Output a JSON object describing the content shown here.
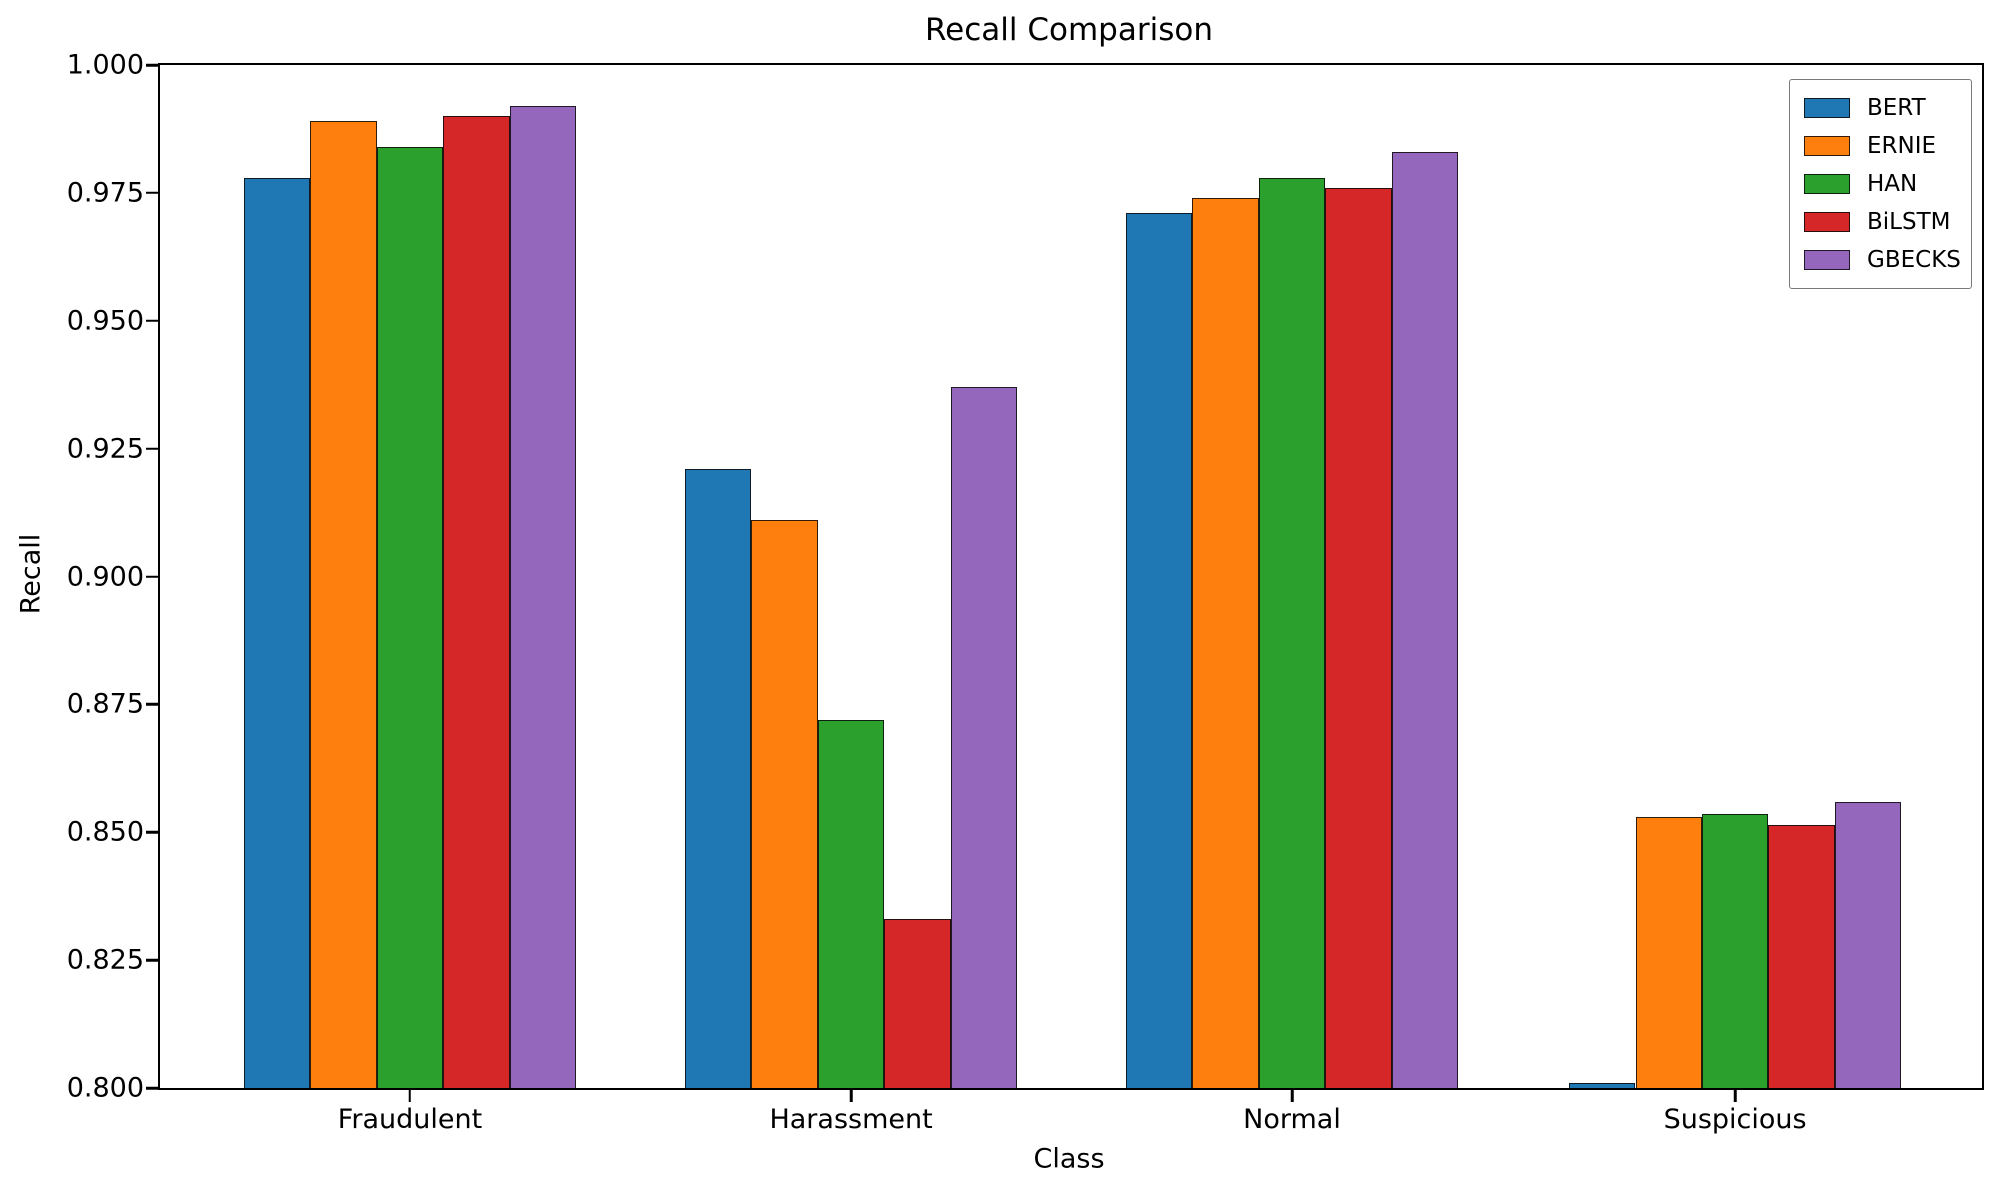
{
  "figure": {
    "title": "Recall Comparison",
    "xlabel": "Class",
    "ylabel": "Recall"
  },
  "chart_data": {
    "type": "bar",
    "title": "Recall Comparison",
    "xlabel": "Class",
    "ylabel": "Recall",
    "categories": [
      "Fraudulent",
      "Harassment",
      "Normal",
      "Suspicious"
    ],
    "series": [
      {
        "name": "BERT",
        "color": "#1f77b4",
        "values": [
          0.978,
          0.921,
          0.971,
          0.801
        ]
      },
      {
        "name": "ERNIE",
        "color": "#ff7f0e",
        "values": [
          0.989,
          0.911,
          0.974,
          0.853
        ]
      },
      {
        "name": "HAN",
        "color": "#2ca02c",
        "values": [
          0.984,
          0.872,
          0.978,
          0.8535
        ]
      },
      {
        "name": "BiLSTM",
        "color": "#d62728",
        "values": [
          0.99,
          0.833,
          0.976,
          0.8515
        ]
      },
      {
        "name": "GBECKS",
        "color": "#9467bd",
        "values": [
          0.992,
          0.937,
          0.983,
          0.856
        ]
      }
    ],
    "ylim": [
      0.8,
      1.0
    ],
    "ytick_labels": [
      "0.800",
      "0.825",
      "0.850",
      "0.875",
      "0.900",
      "0.925",
      "0.950",
      "0.975",
      "1.000"
    ],
    "grid": false,
    "legend_position": "upper right"
  }
}
